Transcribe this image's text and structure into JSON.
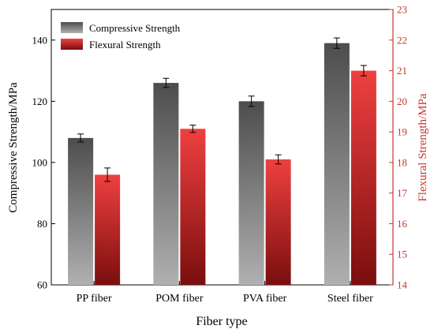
{
  "chart_data": {
    "type": "bar",
    "categories": [
      "PP fiber",
      "POM fiber",
      "PVA fiber",
      "Steel fiber"
    ],
    "xlabel": "Fiber type",
    "series": [
      {
        "name": "Compressive Strength",
        "axis": "left",
        "values": [
          108,
          126,
          120,
          139
        ],
        "errors": [
          1.3,
          1.5,
          1.7,
          1.7
        ],
        "color_top": "#4d4d4d",
        "color_bottom": "#b0b0b0"
      },
      {
        "name": "Flexural Strength",
        "axis": "right",
        "values": [
          17.6,
          19.1,
          18.1,
          21.0
        ],
        "errors": [
          0.22,
          0.12,
          0.15,
          0.17
        ],
        "color_top": "#ef4040",
        "color_bottom": "#7a0e0e"
      }
    ],
    "left_axis": {
      "label": "Compressive Strength/MPa",
      "ylim": [
        60,
        150
      ],
      "ticks": [
        60,
        80,
        100,
        120,
        140
      ],
      "color": "#000000"
    },
    "right_axis": {
      "label": "Flexural Strength/MPa",
      "ylim": [
        14,
        23
      ],
      "ticks": [
        14,
        15,
        16,
        17,
        18,
        19,
        20,
        21,
        22,
        23
      ],
      "color": "#c0392b"
    },
    "legend_position": "top-left",
    "grid": false
  }
}
